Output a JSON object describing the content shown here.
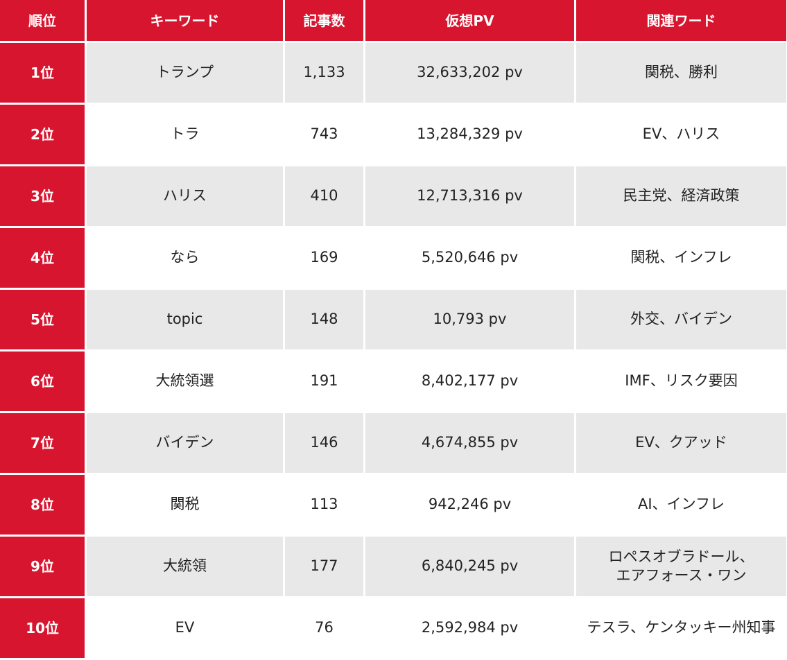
{
  "table": {
    "headers": [
      "順位",
      "キーワード",
      "記事数",
      "仮想PV",
      "関連ワード"
    ],
    "rows": [
      [
        "1位",
        "トランプ",
        "1,133",
        "32,633,202 pv",
        "関税、勝利"
      ],
      [
        "2位",
        "トラ",
        "743",
        "13,284,329 pv",
        "EV、ハリス"
      ],
      [
        "3位",
        "ハリス",
        "410",
        "12,713,316 pv",
        "民主党、経済政策"
      ],
      [
        "4位",
        "なら",
        "169",
        "5,520,646 pv",
        "関税、インフレ"
      ],
      [
        "5位",
        "topic",
        "148",
        "10,793 pv",
        "外交、バイデン"
      ],
      [
        "6位",
        "大統領選",
        "191",
        "8,402,177 pv",
        "IMF、リスク要因"
      ],
      [
        "7位",
        "バイデン",
        "146",
        "4,674,855 pv",
        "EV、クアッド"
      ],
      [
        "8位",
        "関税",
        "113",
        "942,246 pv",
        "AI、インフレ"
      ],
      [
        "9位",
        "大統領",
        "177",
        "6,840,245 pv",
        "ロペスオブラドール、\nエアフォース・ワン"
      ],
      [
        "10位",
        "EV",
        "76",
        "2,592,984 pv",
        "テスラ、ケンタッキー州知事"
      ]
    ]
  }
}
